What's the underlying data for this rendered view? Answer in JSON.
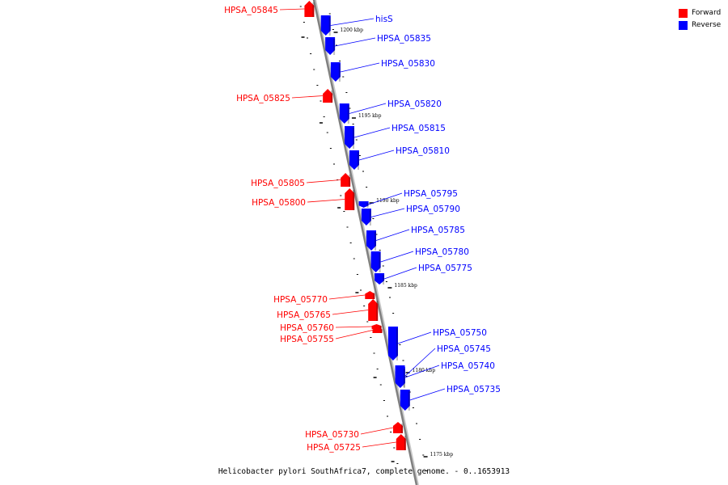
{
  "legend": {
    "forward_label": "Forward",
    "reverse_label": "Reverse",
    "forward_color": "#ff0000",
    "reverse_color": "#0000ff"
  },
  "caption": "Helicobacter pylori SouthAfrica7, complete genome. - 0..1653913",
  "kbp_labels": [
    "1200 kbp",
    "1195 kbp",
    "1190 kbp",
    "1185 kbp",
    "1180 kbp",
    "1175 kbp"
  ],
  "genes": [
    {
      "name": "HPSA_05845",
      "strand": "forward"
    },
    {
      "name": "hisS",
      "strand": "reverse"
    },
    {
      "name": "HPSA_05835",
      "strand": "reverse"
    },
    {
      "name": "HPSA_05830",
      "strand": "reverse"
    },
    {
      "name": "HPSA_05825",
      "strand": "forward"
    },
    {
      "name": "HPSA_05820",
      "strand": "reverse"
    },
    {
      "name": "HPSA_05815",
      "strand": "reverse"
    },
    {
      "name": "HPSA_05810",
      "strand": "reverse"
    },
    {
      "name": "HPSA_05805",
      "strand": "forward"
    },
    {
      "name": "HPSA_05800",
      "strand": "forward"
    },
    {
      "name": "HPSA_05795",
      "strand": "reverse"
    },
    {
      "name": "HPSA_05790",
      "strand": "reverse"
    },
    {
      "name": "HPSA_05785",
      "strand": "reverse"
    },
    {
      "name": "HPSA_05780",
      "strand": "reverse"
    },
    {
      "name": "HPSA_05775",
      "strand": "reverse"
    },
    {
      "name": "HPSA_05770",
      "strand": "forward"
    },
    {
      "name": "HPSA_05765",
      "strand": "forward"
    },
    {
      "name": "HPSA_05760",
      "strand": "forward"
    },
    {
      "name": "HPSA_05755",
      "strand": "forward"
    },
    {
      "name": "HPSA_05750",
      "strand": "reverse"
    },
    {
      "name": "HPSA_05745",
      "strand": "reverse"
    },
    {
      "name": "HPSA_05740",
      "strand": "reverse"
    },
    {
      "name": "HPSA_05735",
      "strand": "reverse"
    },
    {
      "name": "HPSA_05730",
      "strand": "forward"
    },
    {
      "name": "HPSA_05725",
      "strand": "forward"
    }
  ]
}
